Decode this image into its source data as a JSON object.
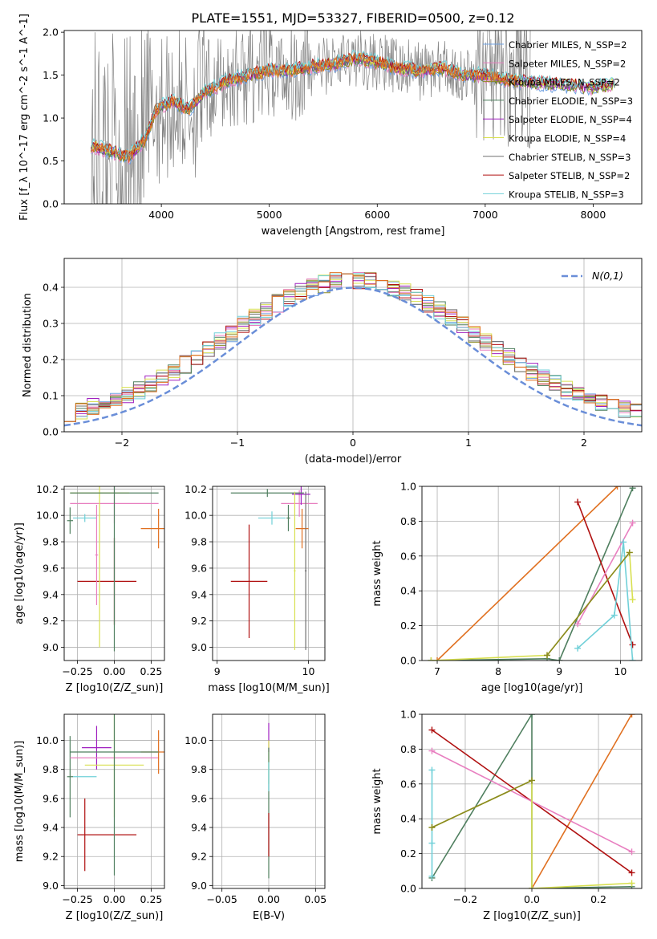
{
  "figure": {
    "title": "PLATE=1551, MJD=53327, FIBERID=0500, z=0.12"
  },
  "colors": {
    "blue": "#6fa0e0",
    "pink": "#e87fc0",
    "olive": "#8a8a20",
    "darkgreen": "#4f7f5f",
    "purple": "#a020c0",
    "yellow": "#d8e050",
    "gray": "#707070",
    "red": "#b01010",
    "cyan": "#70d0d8",
    "orange": "#e07020",
    "data": "#808080",
    "gauss": "#6a8ed8"
  },
  "chart_data": [
    {
      "id": "spectrum",
      "type": "line",
      "xlabel": "wavelength [Angstrom, rest frame]",
      "ylabel": "Flux [f_λ 10^-17 erg cm^-2 s^-1 A^-1]",
      "xlim": [
        3100,
        8450
      ],
      "ylim": [
        0,
        2.02
      ],
      "xticks": [
        4000,
        5000,
        6000,
        7000,
        8000
      ],
      "yticks": [
        0.0,
        0.5,
        1.0,
        1.5,
        2.0
      ],
      "legend_position": "right",
      "legend": [
        {
          "label": "Chabrier MILES, N_SSP=2",
          "color": "blue"
        },
        {
          "label": "Salpeter MILES, N_SSP=2",
          "color": "pink"
        },
        {
          "label": "Kroupa MILES, N_SSP=2",
          "color": "olive"
        },
        {
          "label": "Chabrier ELODIE, N_SSP=3",
          "color": "darkgreen"
        },
        {
          "label": "Salpeter ELODIE, N_SSP=4",
          "color": "purple"
        },
        {
          "label": "Kroupa ELODIE, N_SSP=4",
          "color": "yellow"
        },
        {
          "label": "Chabrier STELIB, N_SSP=3",
          "color": "gray"
        },
        {
          "label": "Salpeter STELIB, N_SSP=2",
          "color": "red"
        },
        {
          "label": "Kroupa STELIB, N_SSP=3",
          "color": "cyan"
        }
      ],
      "model_continuum": {
        "x": [
          3350,
          3500,
          3700,
          3850,
          3950,
          4100,
          4250,
          4400,
          4600,
          4800,
          5000,
          5200,
          5400,
          5600,
          5800,
          6000,
          6200,
          6400,
          6600,
          6800,
          7000,
          7200,
          7400,
          7600,
          7800,
          8000,
          8200
        ],
        "y": [
          0.68,
          0.62,
          0.55,
          0.75,
          1.1,
          1.2,
          1.1,
          1.3,
          1.42,
          1.5,
          1.55,
          1.55,
          1.6,
          1.63,
          1.7,
          1.65,
          1.58,
          1.55,
          1.58,
          1.5,
          1.5,
          1.45,
          1.42,
          1.4,
          1.38,
          1.35,
          1.4
        ]
      },
      "data_span": [
        3350,
        7420
      ]
    },
    {
      "id": "residuals",
      "type": "histogram",
      "xlabel": "(data-model)/error",
      "ylabel": "Normed distribution",
      "xlim": [
        -2.5,
        2.5
      ],
      "ylim": [
        0,
        0.48
      ],
      "xticks": [
        -2,
        -1,
        0,
        1,
        2
      ],
      "yticks": [
        0.0,
        0.1,
        0.2,
        0.3,
        0.4
      ],
      "grid": true,
      "legend_position": "top-right",
      "gauss_label": "N(0,1)",
      "bin_width": 0.1
    },
    {
      "id": "Z-age",
      "type": "scatter",
      "xlabel": "Z [log10(Z/Z_sun)]",
      "ylabel": "age [log10(age/yr)]",
      "xlim": [
        -0.34,
        0.34
      ],
      "ylim": [
        8.9,
        10.22
      ],
      "xticks": [
        -0.25,
        0.0,
        0.25
      ],
      "yticks": [
        9.0,
        9.2,
        9.4,
        9.6,
        9.8,
        10.0,
        10.2
      ],
      "grid": true,
      "points": [
        {
          "color": "red",
          "x": 0.0,
          "y": 9.5,
          "xerr": 0.2,
          "yerr": 0.33,
          "xoff": -0.05
        },
        {
          "color": "cyan",
          "x": -0.2,
          "y": 9.98,
          "xerr": 0.08,
          "yerr": 0.03
        },
        {
          "color": "darkgreen",
          "x": -0.3,
          "y": 9.96,
          "xerr": 0.02,
          "yerr": 0.1
        },
        {
          "color": "orange",
          "x": 0.3,
          "y": 9.9,
          "xerr": 0.12,
          "yerr": 0.15
        },
        {
          "color": "pink",
          "x": 0.0,
          "y": 10.09,
          "xerr": 0.3,
          "yerr": 0.15
        },
        {
          "color": "yellow",
          "x": -0.1,
          "y": 10.17,
          "xerr": 0.2,
          "yerr": 1.17
        },
        {
          "color": "darkgreen",
          "x": 0.0,
          "y": 10.17,
          "xerr": 0.3,
          "yerr": 1.2
        },
        {
          "color": "pink",
          "x": -0.12,
          "y": 9.7,
          "xerr": 0.01,
          "yerr": 0.38
        }
      ]
    },
    {
      "id": "mass-age",
      "type": "scatter",
      "xlabel": "mass [log10(M/M_sun)]",
      "ylabel": "",
      "xlim": [
        8.95,
        10.18
      ],
      "ylim": [
        8.9,
        10.22
      ],
      "xticks": [
        9,
        10
      ],
      "yticks": [
        9.0,
        9.2,
        9.4,
        9.6,
        9.8,
        10.0,
        10.2
      ],
      "grid": true,
      "points": [
        {
          "color": "red",
          "x": 9.35,
          "y": 9.5,
          "xerr": 0.2,
          "yerr": 0.43
        },
        {
          "color": "cyan",
          "x": 9.6,
          "y": 9.98,
          "xerr": 0.15,
          "yerr": 0.05
        },
        {
          "color": "darkgreen",
          "x": 9.78,
          "y": 9.98,
          "xerr": 0.02,
          "yerr": 0.1
        },
        {
          "color": "orange",
          "x": 9.93,
          "y": 9.9,
          "xerr": 0.07,
          "yerr": 0.15
        },
        {
          "color": "pink",
          "x": 9.9,
          "y": 10.09,
          "xerr": 0.2,
          "yerr": 0.1
        },
        {
          "color": "purple",
          "x": 9.92,
          "y": 10.16,
          "xerr": 0.1,
          "yerr": 0.08
        },
        {
          "color": "darkgreen",
          "x": 9.55,
          "y": 10.17,
          "xerr": 0.4,
          "yerr": 0.03
        },
        {
          "color": "yellow",
          "x": 9.85,
          "y": 9.58,
          "xerr": 0.01,
          "yerr": 0.6
        },
        {
          "color": "gray",
          "x": 9.97,
          "y": 9.58,
          "xerr": 0.01,
          "yerr": 0.6
        }
      ]
    },
    {
      "id": "age-weight",
      "type": "line",
      "xlabel": "age [log10(age/yr)]",
      "ylabel": "mass weight",
      "xlim": [
        6.75,
        10.35
      ],
      "ylim": [
        0,
        1.0
      ],
      "xticks": [
        7,
        8,
        9,
        10
      ],
      "yticks": [
        0.0,
        0.2,
        0.4,
        0.6,
        0.8,
        1.0
      ],
      "grid": true,
      "series": [
        {
          "color": "orange",
          "x": [
            7.0,
            9.95
          ],
          "y": [
            0.0,
            1.0
          ]
        },
        {
          "color": "darkgreen",
          "x": [
            6.9,
            8.8,
            9.0,
            10.2
          ],
          "y": [
            0.0,
            0.01,
            0.0,
            0.99
          ]
        },
        {
          "color": "red",
          "x": [
            9.3,
            10.2
          ],
          "y": [
            0.91,
            0.09
          ]
        },
        {
          "color": "pink",
          "x": [
            9.3,
            10.2
          ],
          "y": [
            0.21,
            0.79
          ]
        },
        {
          "color": "cyan",
          "x": [
            9.3,
            9.9,
            10.05,
            10.2
          ],
          "y": [
            0.07,
            0.26,
            0.68,
            0.0
          ]
        },
        {
          "color": "yellow",
          "x": [
            6.9,
            8.8,
            10.15,
            10.2
          ],
          "y": [
            0.0,
            0.03,
            0.62,
            0.35
          ]
        },
        {
          "color": "olive",
          "x": [
            8.8,
            10.15
          ],
          "y": [
            0.03,
            0.62
          ]
        }
      ]
    },
    {
      "id": "Z-mass",
      "type": "scatter",
      "xlabel": "Z [log10(Z/Z_sun)]",
      "ylabel": "mass [log10(M/M_sun)]",
      "xlim": [
        -0.34,
        0.34
      ],
      "ylim": [
        8.98,
        10.18
      ],
      "xticks": [
        -0.25,
        0.0,
        0.25
      ],
      "yticks": [
        9.0,
        9.2,
        9.4,
        9.6,
        9.8,
        10.0
      ],
      "grid": true,
      "points": [
        {
          "color": "red",
          "x": 0.0,
          "y": 9.35,
          "xerr": 0.2,
          "yerr": 0.0,
          "xoff": -0.05
        },
        {
          "color": "red",
          "x": -0.2,
          "y": 9.35,
          "xerr": 0.0,
          "yerr": 0.25
        },
        {
          "color": "cyan",
          "x": -0.2,
          "y": 9.75,
          "xerr": 0.08,
          "yerr": 0.0
        },
        {
          "color": "darkgreen",
          "x": -0.3,
          "y": 9.75,
          "xerr": 0.02,
          "yerr": 0.28
        },
        {
          "color": "purple",
          "x": -0.12,
          "y": 9.95,
          "xerr": 0.1,
          "yerr": 0.15
        },
        {
          "color": "pink",
          "x": 0.0,
          "y": 9.88,
          "xerr": 0.3,
          "yerr": 0.0
        },
        {
          "color": "yellow",
          "x": 0.0,
          "y": 9.83,
          "xerr": 0.2,
          "yerr": 0.36
        },
        {
          "color": "orange",
          "x": 0.3,
          "y": 9.92,
          "xerr": 0.12,
          "yerr": 0.15
        },
        {
          "color": "darkgreen",
          "x": 0.0,
          "y": 9.92,
          "xerr": 0.3,
          "yerr": 0.85
        }
      ]
    },
    {
      "id": "EBV-mass",
      "type": "scatter",
      "xlabel": "E(B-V)",
      "ylabel": "",
      "xlim": [
        -0.06,
        0.06
      ],
      "ylim": [
        8.98,
        10.18
      ],
      "xticks": [
        -0.05,
        0.0,
        0.05
      ],
      "yticks": [
        9.0,
        9.2,
        9.4,
        9.6,
        9.8,
        10.0
      ],
      "grid": true,
      "points": [
        {
          "color": "purple",
          "x": 0.0,
          "y": 10.02,
          "xerr": 0.0,
          "yerr": 0.1
        },
        {
          "color": "yellow",
          "x": 0.0,
          "y": 9.85,
          "xerr": 0.0,
          "yerr": 0.15
        },
        {
          "color": "darkgreen",
          "x": 0.0,
          "y": 9.5,
          "xerr": 0.0,
          "yerr": 0.45
        },
        {
          "color": "red",
          "x": 0.0,
          "y": 9.35,
          "xerr": 0.0,
          "yerr": 0.15
        },
        {
          "color": "cyan",
          "x": 0.0,
          "y": 9.75,
          "xerr": 0.0,
          "yerr": 0.1
        }
      ]
    },
    {
      "id": "Z-weight",
      "type": "line",
      "xlabel": "Z [log10(Z/Z_sun)]",
      "ylabel": "mass weight",
      "xlim": [
        -0.33,
        0.33
      ],
      "ylim": [
        0,
        1.0
      ],
      "xticks": [
        -0.2,
        0.0,
        0.2
      ],
      "yticks": [
        0.0,
        0.2,
        0.4,
        0.6,
        0.8,
        1.0
      ],
      "grid": true,
      "series": [
        {
          "color": "orange",
          "x": [
            0.0,
            0.3
          ],
          "y": [
            0.0,
            1.0
          ]
        },
        {
          "color": "darkgreen",
          "x": [
            -0.3,
            0.0,
            0.0,
            0.3
          ],
          "y": [
            0.06,
            1.0,
            0.0,
            0.01
          ]
        },
        {
          "color": "red",
          "x": [
            -0.3,
            0.3
          ],
          "y": [
            0.91,
            0.09
          ]
        },
        {
          "color": "pink",
          "x": [
            -0.3,
            0.3
          ],
          "y": [
            0.79,
            0.21
          ]
        },
        {
          "color": "cyan",
          "x": [
            -0.3,
            -0.3,
            -0.3
          ],
          "y": [
            0.07,
            0.26,
            0.68
          ]
        },
        {
          "color": "yellow",
          "x": [
            -0.3,
            0.0,
            0.0,
            0.3
          ],
          "y": [
            0.35,
            0.62,
            0.0,
            0.03
          ]
        },
        {
          "color": "olive",
          "x": [
            -0.3,
            0.0
          ],
          "y": [
            0.35,
            0.62
          ]
        }
      ]
    }
  ]
}
